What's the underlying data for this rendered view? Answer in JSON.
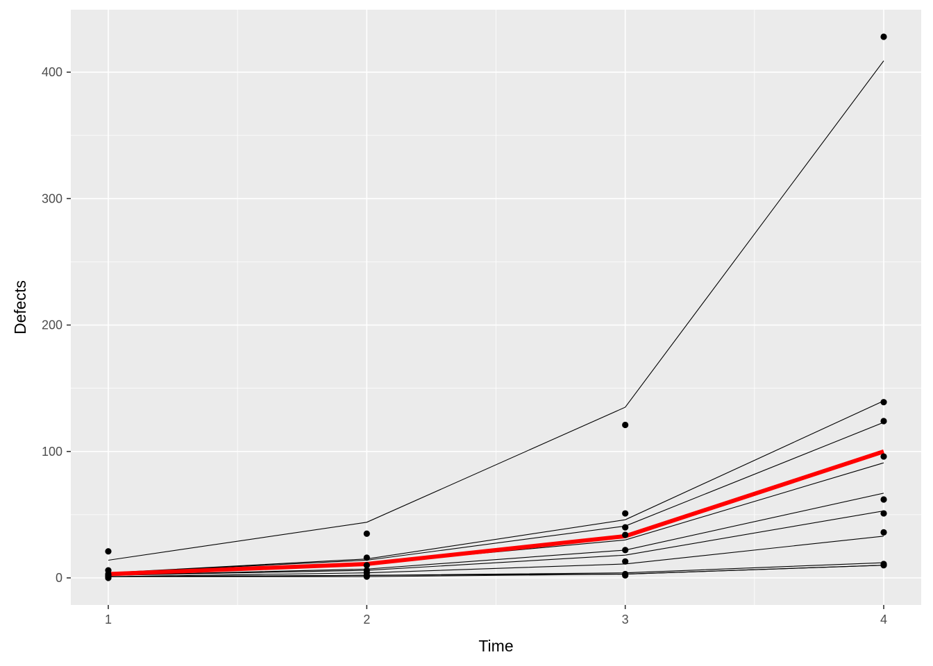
{
  "chart_data": {
    "type": "line",
    "title": "",
    "xlabel": "Time",
    "ylabel": "Defects",
    "x": [
      1,
      2,
      3,
      4
    ],
    "xticks": [
      1,
      2,
      3,
      4
    ],
    "xlim": [
      0.855,
      4.145
    ],
    "yticks": [
      0,
      100,
      200,
      300,
      400
    ],
    "ylim": [
      -21.4,
      449.4
    ],
    "grid": true,
    "legend": "none",
    "panel_background": "#ebebeb",
    "grid_color": "#ffffff",
    "fitted_line_color": "#000000",
    "mean_line_color": "#ff0000",
    "point_color": "#000000",
    "series": [
      {
        "fitted": [
          14,
          44,
          135,
          409
        ]
      },
      {
        "fitted": [
          4,
          15,
          46,
          140
        ]
      },
      {
        "fitted": [
          4,
          14,
          41,
          123
        ]
      },
      {
        "fitted": [
          3,
          11,
          30,
          91
        ]
      },
      {
        "fitted": [
          2,
          7,
          22,
          67
        ]
      },
      {
        "fitted": [
          2,
          6,
          18,
          53
        ]
      },
      {
        "fitted": [
          1,
          4,
          11,
          33
        ]
      },
      {
        "fitted": [
          1,
          2,
          4,
          12
        ]
      },
      {
        "fitted": [
          1,
          2,
          3,
          10
        ]
      },
      {
        "fitted": [
          1,
          1,
          3,
          10
        ]
      }
    ],
    "mean_series": {
      "values": [
        3,
        11,
        33,
        100
      ]
    },
    "points": [
      {
        "x": 1,
        "y": 21
      },
      {
        "x": 1,
        "y": 6
      },
      {
        "x": 1,
        "y": 3
      },
      {
        "x": 1,
        "y": 2
      },
      {
        "x": 1,
        "y": 1
      },
      {
        "x": 1,
        "y": 0
      },
      {
        "x": 2,
        "y": 35
      },
      {
        "x": 2,
        "y": 16
      },
      {
        "x": 2,
        "y": 10
      },
      {
        "x": 2,
        "y": 6
      },
      {
        "x": 2,
        "y": 4
      },
      {
        "x": 2,
        "y": 2
      },
      {
        "x": 2,
        "y": 1
      },
      {
        "x": 3,
        "y": 121
      },
      {
        "x": 3,
        "y": 51
      },
      {
        "x": 3,
        "y": 40
      },
      {
        "x": 3,
        "y": 34
      },
      {
        "x": 3,
        "y": 22
      },
      {
        "x": 3,
        "y": 13
      },
      {
        "x": 3,
        "y": 3
      },
      {
        "x": 3,
        "y": 2
      },
      {
        "x": 4,
        "y": 428
      },
      {
        "x": 4,
        "y": 139
      },
      {
        "x": 4,
        "y": 124
      },
      {
        "x": 4,
        "y": 96
      },
      {
        "x": 4,
        "y": 62
      },
      {
        "x": 4,
        "y": 51
      },
      {
        "x": 4,
        "y": 36
      },
      {
        "x": 4,
        "y": 11
      },
      {
        "x": 4,
        "y": 10
      }
    ]
  }
}
